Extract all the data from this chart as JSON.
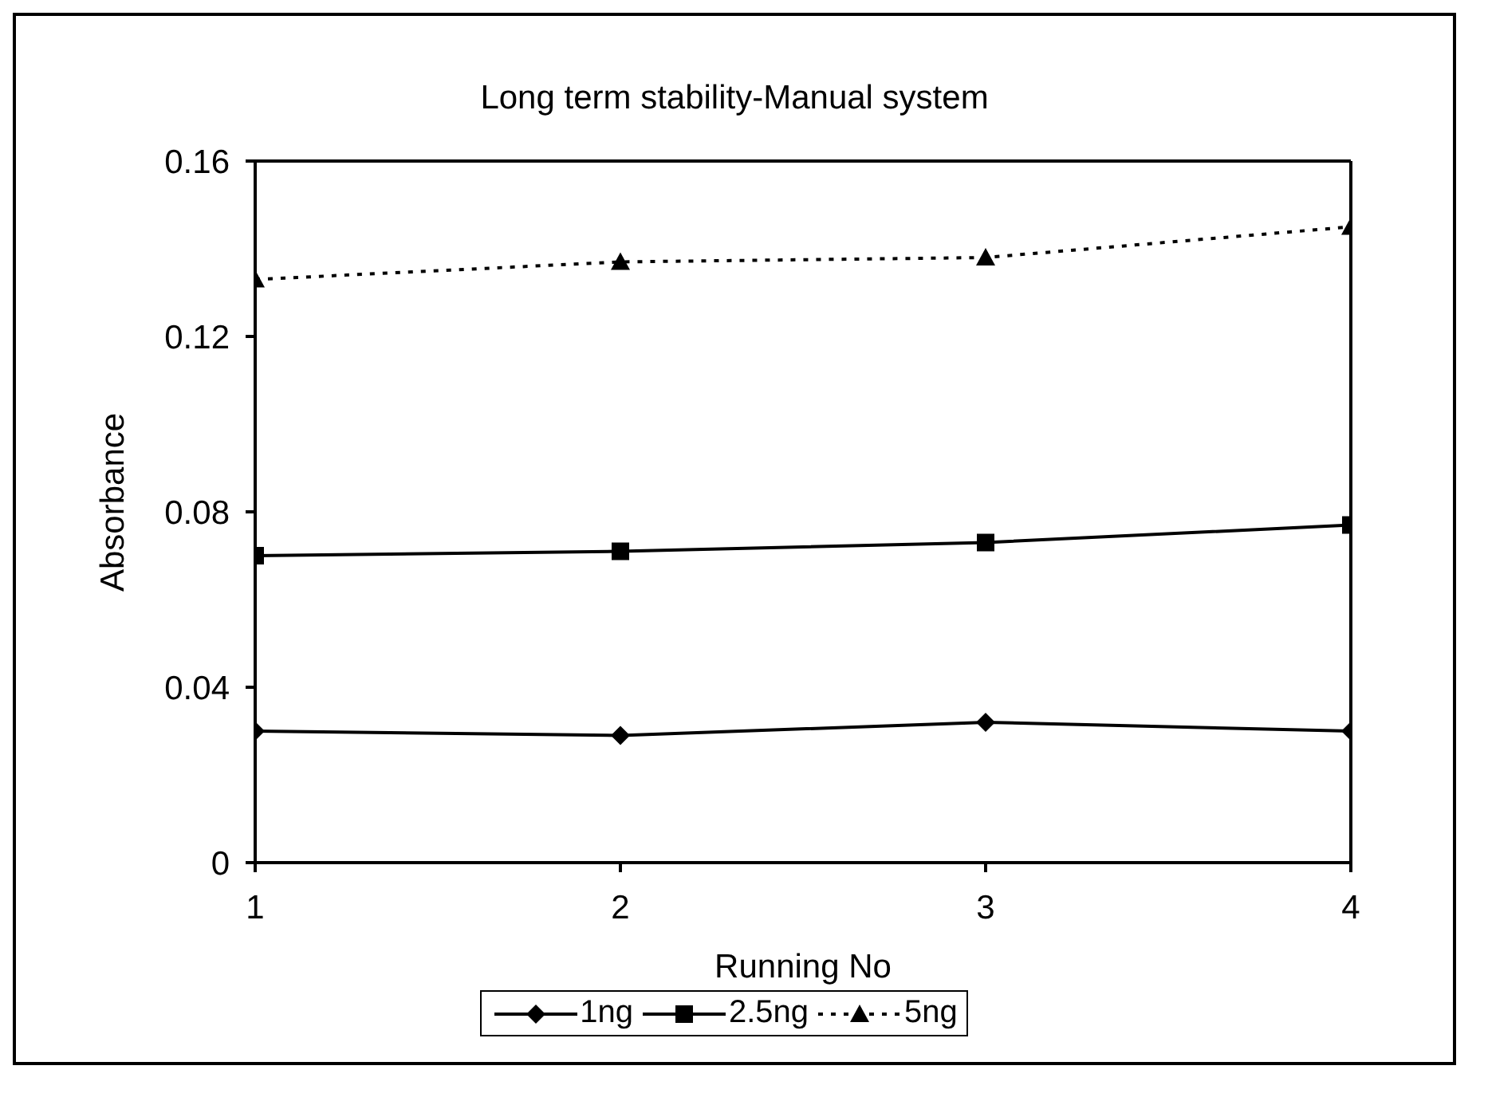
{
  "chart_data": {
    "type": "line",
    "title": "Long term stability-Manual system",
    "xlabel": "Running No",
    "ylabel": "Absorbance",
    "x": [
      1,
      2,
      3,
      4
    ],
    "xlim": [
      1,
      4
    ],
    "xticks": [
      1,
      2,
      3,
      4
    ],
    "ylim": [
      0,
      0.16
    ],
    "yticks": [
      0,
      0.04,
      0.08,
      0.12,
      0.16
    ],
    "grid": false,
    "legend": "bottom",
    "series": [
      {
        "name": "1ng",
        "color": "#000000",
        "marker": "diamond",
        "line_style": "solid",
        "values": [
          0.03,
          0.029,
          0.032,
          0.03
        ]
      },
      {
        "name": "2.5ng",
        "color": "#000000",
        "marker": "square",
        "line_style": "solid",
        "values": [
          0.07,
          0.071,
          0.073,
          0.077
        ]
      },
      {
        "name": "5ng",
        "color": "#000000",
        "marker": "triangle",
        "line_style": "dotted",
        "values": [
          0.133,
          0.137,
          0.138,
          0.145
        ]
      }
    ]
  }
}
